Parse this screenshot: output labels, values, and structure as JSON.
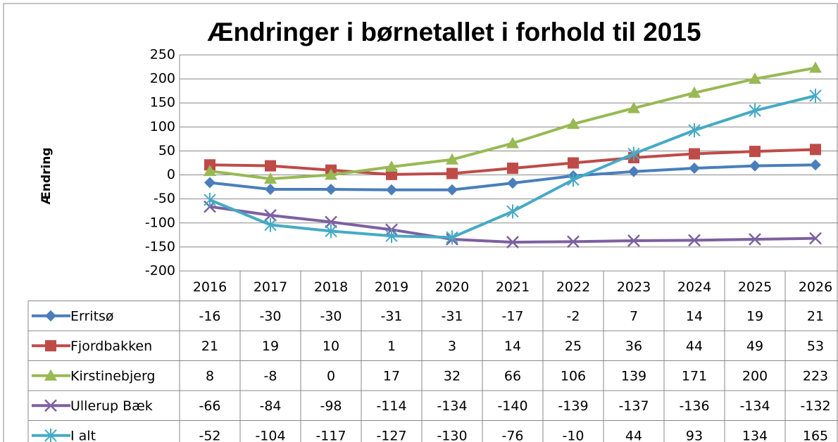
{
  "chart_data": {
    "type": "line",
    "title": "Ændringer i børnetallet i forhold til 2015",
    "y_label": "Ændring",
    "categories": [
      "2016",
      "2017",
      "2018",
      "2019",
      "2020",
      "2021",
      "2022",
      "2023",
      "2024",
      "2025",
      "2026"
    ],
    "series": [
      {
        "name": "Erritsø",
        "color": "#4a7ebb",
        "marker": "diamond",
        "values": [
          -16,
          -30,
          -30,
          -31,
          -31,
          -17,
          -2,
          7,
          14,
          19,
          21
        ]
      },
      {
        "name": "Fjordbakken",
        "color": "#be4b48",
        "marker": "square",
        "values": [
          21,
          19,
          10,
          1,
          3,
          14,
          25,
          36,
          44,
          49,
          53
        ]
      },
      {
        "name": "Kirstinebjerg",
        "color": "#98b954",
        "marker": "triangle",
        "values": [
          8,
          -8,
          0,
          17,
          32,
          66,
          106,
          139,
          171,
          200,
          223
        ]
      },
      {
        "name": "Ullerup Bæk",
        "color": "#7d60a0",
        "marker": "x",
        "values": [
          -66,
          -84,
          -98,
          -114,
          -134,
          -140,
          -139,
          -137,
          -136,
          -134,
          -132
        ]
      },
      {
        "name": "I alt",
        "color": "#46aac5",
        "marker": "star",
        "values": [
          -52,
          -104,
          -117,
          -127,
          -130,
          -76,
          -10,
          44,
          93,
          134,
          165
        ]
      }
    ],
    "ylim": [
      -200,
      250
    ],
    "yticks": [
      -200,
      -150,
      -100,
      -50,
      0,
      50,
      100,
      150,
      200,
      250
    ],
    "grid": true
  }
}
